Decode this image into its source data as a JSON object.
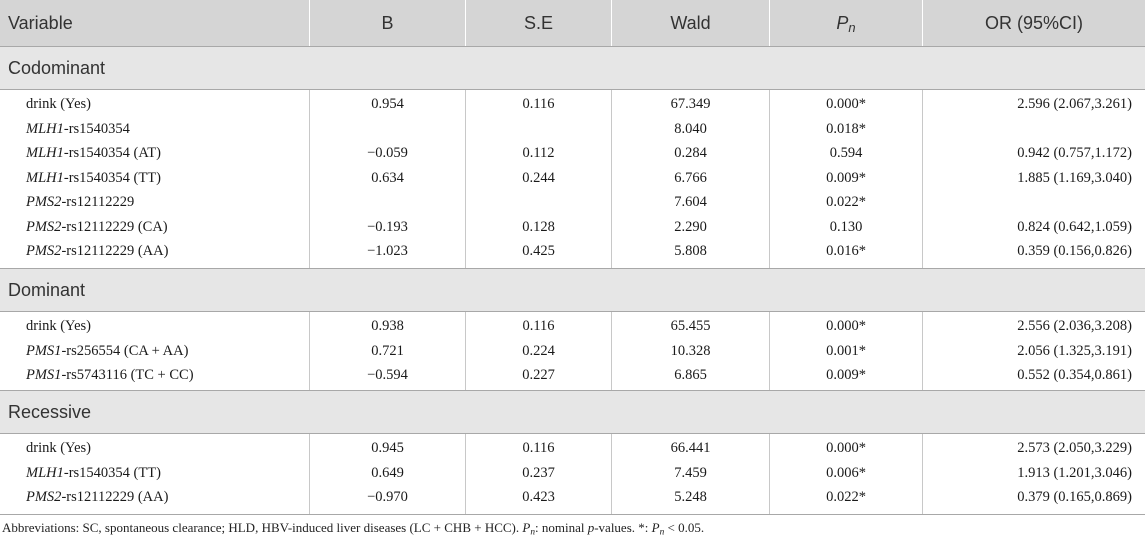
{
  "header": {
    "variable": "Variable",
    "b": "B",
    "se": "S.E",
    "wald": "Wald",
    "p_main": "P",
    "p_sub": "n",
    "or": "OR (95%CI)"
  },
  "sections": [
    {
      "title": "Codominant",
      "rows": [
        {
          "gene": "",
          "var": "drink (Yes)",
          "b": "0.954",
          "se": "0.116",
          "wald": "67.349",
          "p": "0.000*",
          "or": "2.596 (2.067,3.261)"
        },
        {
          "gene": "MLH1",
          "var": "-rs1540354",
          "b": "",
          "se": "",
          "wald": "8.040",
          "p": "0.018*",
          "or": ""
        },
        {
          "gene": "MLH1",
          "var": "-rs1540354 (AT)",
          "b": "−0.059",
          "se": "0.112",
          "wald": "0.284",
          "p": "0.594",
          "or": "0.942 (0.757,1.172)"
        },
        {
          "gene": "MLH1",
          "var": "-rs1540354 (TT)",
          "b": "0.634",
          "se": "0.244",
          "wald": "6.766",
          "p": "0.009*",
          "or": "1.885 (1.169,3.040)"
        },
        {
          "gene": "PMS2",
          "var": "-rs12112229",
          "b": "",
          "se": "",
          "wald": "7.604",
          "p": "0.022*",
          "or": ""
        },
        {
          "gene": "PMS2",
          "var": "-rs12112229 (CA)",
          "b": "−0.193",
          "se": "0.128",
          "wald": "2.290",
          "p": "0.130",
          "or": "0.824 (0.642,1.059)"
        },
        {
          "gene": "PMS2",
          "var": "-rs12112229 (AA)",
          "b": "−1.023",
          "se": "0.425",
          "wald": "5.808",
          "p": "0.016*",
          "or": "0.359 (0.156,0.826)"
        }
      ]
    },
    {
      "title": "Dominant",
      "rows": [
        {
          "gene": "",
          "var": "drink (Yes)",
          "b": "0.938",
          "se": "0.116",
          "wald": "65.455",
          "p": "0.000*",
          "or": "2.556 (2.036,3.208)"
        },
        {
          "gene": "PMS1",
          "var": "-rs256554 (CA + AA)",
          "b": "0.721",
          "se": "0.224",
          "wald": "10.328",
          "p": "0.001*",
          "or": "2.056 (1.325,3.191)"
        },
        {
          "gene": "PMS1",
          "var": "-rs5743116 (TC + CC)",
          "b": "−0.594",
          "se": "0.227",
          "wald": "6.865",
          "p": "0.009*",
          "or": "0.552 (0.354,0.861)"
        }
      ]
    },
    {
      "title": "Recessive",
      "rows": [
        {
          "gene": "",
          "var": "drink (Yes)",
          "b": "0.945",
          "se": "0.116",
          "wald": "66.441",
          "p": "0.000*",
          "or": "2.573 (2.050,3.229)"
        },
        {
          "gene": "MLH1",
          "var": "-rs1540354 (TT)",
          "b": "0.649",
          "se": "0.237",
          "wald": "7.459",
          "p": "0.006*",
          "or": "1.913 (1.201,3.046)"
        },
        {
          "gene": "PMS2",
          "var": "-rs12112229 (AA)",
          "b": "−0.970",
          "se": "0.423",
          "wald": "5.248",
          "p": "0.022*",
          "or": "0.379 (0.165,0.869)"
        }
      ]
    }
  ],
  "footnote": {
    "part1": "Abbreviations: SC, spontaneous clearance; HLD, HBV-induced liver diseases (LC + CHB + HCC). ",
    "p_main": "P",
    "p_sub": "n",
    "part2": ": nominal ",
    "p_word": "p",
    "part3": "-values. *: ",
    "p2_main": "P",
    "p2_sub": "n",
    "part4": " < 0.05."
  }
}
